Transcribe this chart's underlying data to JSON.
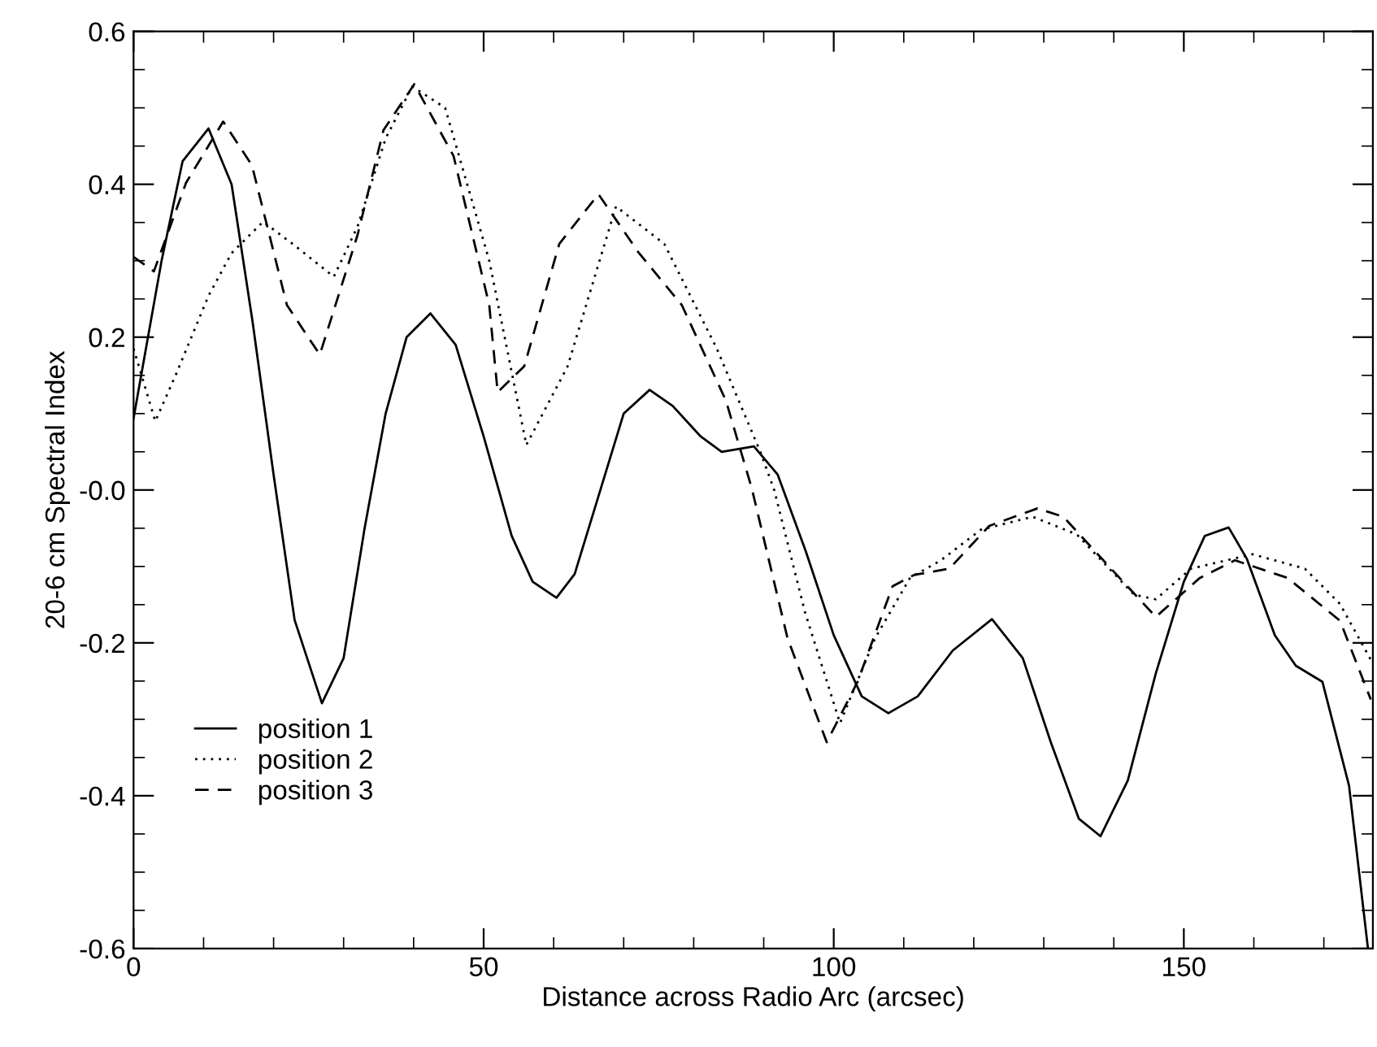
{
  "chart_data": {
    "type": "line",
    "xlabel": "Distance across Radio Arc (arcsec)",
    "ylabel": "20-6 cm Spectral Index",
    "xlim": [
      0,
      177
    ],
    "ylim": [
      -0.6,
      0.6
    ],
    "xticks": [
      0,
      50,
      100,
      150
    ],
    "yticks": [
      {
        "value": -0.6,
        "label": "-0.6"
      },
      {
        "value": -0.4,
        "label": "-0.4"
      },
      {
        "value": -0.2,
        "label": "-0.2"
      },
      {
        "value": 0,
        "label": "-0.0"
      },
      {
        "value": 0.2,
        "label": "0.2"
      },
      {
        "value": 0.4,
        "label": "0.4"
      },
      {
        "value": 0.6,
        "label": "0.6"
      }
    ],
    "grid": false,
    "legend": "bottom left",
    "marker": "none",
    "series": [
      {
        "name": "position 1",
        "color": "#000000",
        "line_style": "solid",
        "x": [
          0,
          4,
          7,
          10.7,
          14,
          17,
          20,
          23,
          26.9,
          30,
          33,
          36,
          39,
          42.4,
          46,
          50,
          54,
          57,
          60.4,
          63,
          66,
          70,
          73.7,
          77,
          81,
          84,
          88.6,
          92,
          96,
          100,
          104,
          107.8,
          112,
          117,
          122.6,
          127,
          131,
          135,
          138.1,
          142,
          146,
          150,
          153,
          156.4,
          159,
          163,
          166,
          169.8,
          173.6,
          176.3
        ],
        "values": [
          0.094,
          0.3,
          0.43,
          0.473,
          0.4,
          0.22,
          0.02,
          -0.17,
          -0.279,
          -0.22,
          -0.05,
          0.1,
          0.2,
          0.231,
          0.19,
          0.07,
          -0.06,
          -0.12,
          -0.141,
          -0.11,
          -0.02,
          0.1,
          0.131,
          0.11,
          0.07,
          0.05,
          0.057,
          0.02,
          -0.08,
          -0.19,
          -0.27,
          -0.292,
          -0.27,
          -0.21,
          -0.169,
          -0.22,
          -0.33,
          -0.43,
          -0.453,
          -0.38,
          -0.24,
          -0.12,
          -0.06,
          -0.049,
          -0.09,
          -0.19,
          -0.23,
          -0.251,
          -0.387,
          -0.6
        ]
      },
      {
        "name": "position 2",
        "color": "#000000",
        "line_style": "dotted",
        "x": [
          0,
          3.1,
          6,
          10.7,
          14,
          18.5,
          23,
          28.6,
          32,
          36,
          39.8,
          44.5,
          50.8,
          56.1,
          62,
          68.9,
          75.8,
          83.3,
          89.6,
          91.5,
          95.9,
          100.9,
          105.9,
          110.9,
          115.3,
          121,
          128.4,
          134.7,
          142.9,
          146,
          151,
          159.8,
          167.3,
          172.3,
          176.7
        ],
        "values": [
          0.185,
          0.09,
          0.15,
          0.254,
          0.31,
          0.351,
          0.32,
          0.279,
          0.345,
          0.46,
          0.528,
          0.5,
          0.3,
          0.059,
          0.162,
          0.371,
          0.322,
          0.185,
          0.048,
          0,
          -0.16,
          -0.305,
          -0.194,
          -0.115,
          -0.092,
          -0.052,
          -0.035,
          -0.058,
          -0.137,
          -0.143,
          -0.103,
          -0.084,
          -0.103,
          -0.149,
          -0.222
        ]
      },
      {
        "name": "position 3",
        "color": "#000000",
        "line_style": "dashed",
        "x": [
          0,
          2.9,
          7.5,
          12.8,
          16.9,
          21.9,
          26.6,
          32,
          35.7,
          40.1,
          45.7,
          50.8,
          52,
          55.8,
          60.8,
          66.4,
          72.1,
          78.3,
          84.6,
          88.3,
          93.4,
          99,
          103.4,
          108.4,
          111.5,
          116.5,
          122.2,
          129.1,
          132.8,
          138.5,
          146,
          152.3,
          157.3,
          164.8,
          172.3,
          176.7
        ],
        "values": [
          0.305,
          0.286,
          0.402,
          0.482,
          0.425,
          0.242,
          0.177,
          0.334,
          0.471,
          0.531,
          0.437,
          0.242,
          0.128,
          0.162,
          0.322,
          0.387,
          0.311,
          0.242,
          0.117,
          0.002,
          -0.194,
          -0.33,
          -0.251,
          -0.126,
          -0.111,
          -0.103,
          -0.047,
          -0.024,
          -0.035,
          -0.092,
          -0.166,
          -0.115,
          -0.092,
          -0.115,
          -0.171,
          -0.274
        ]
      }
    ]
  }
}
